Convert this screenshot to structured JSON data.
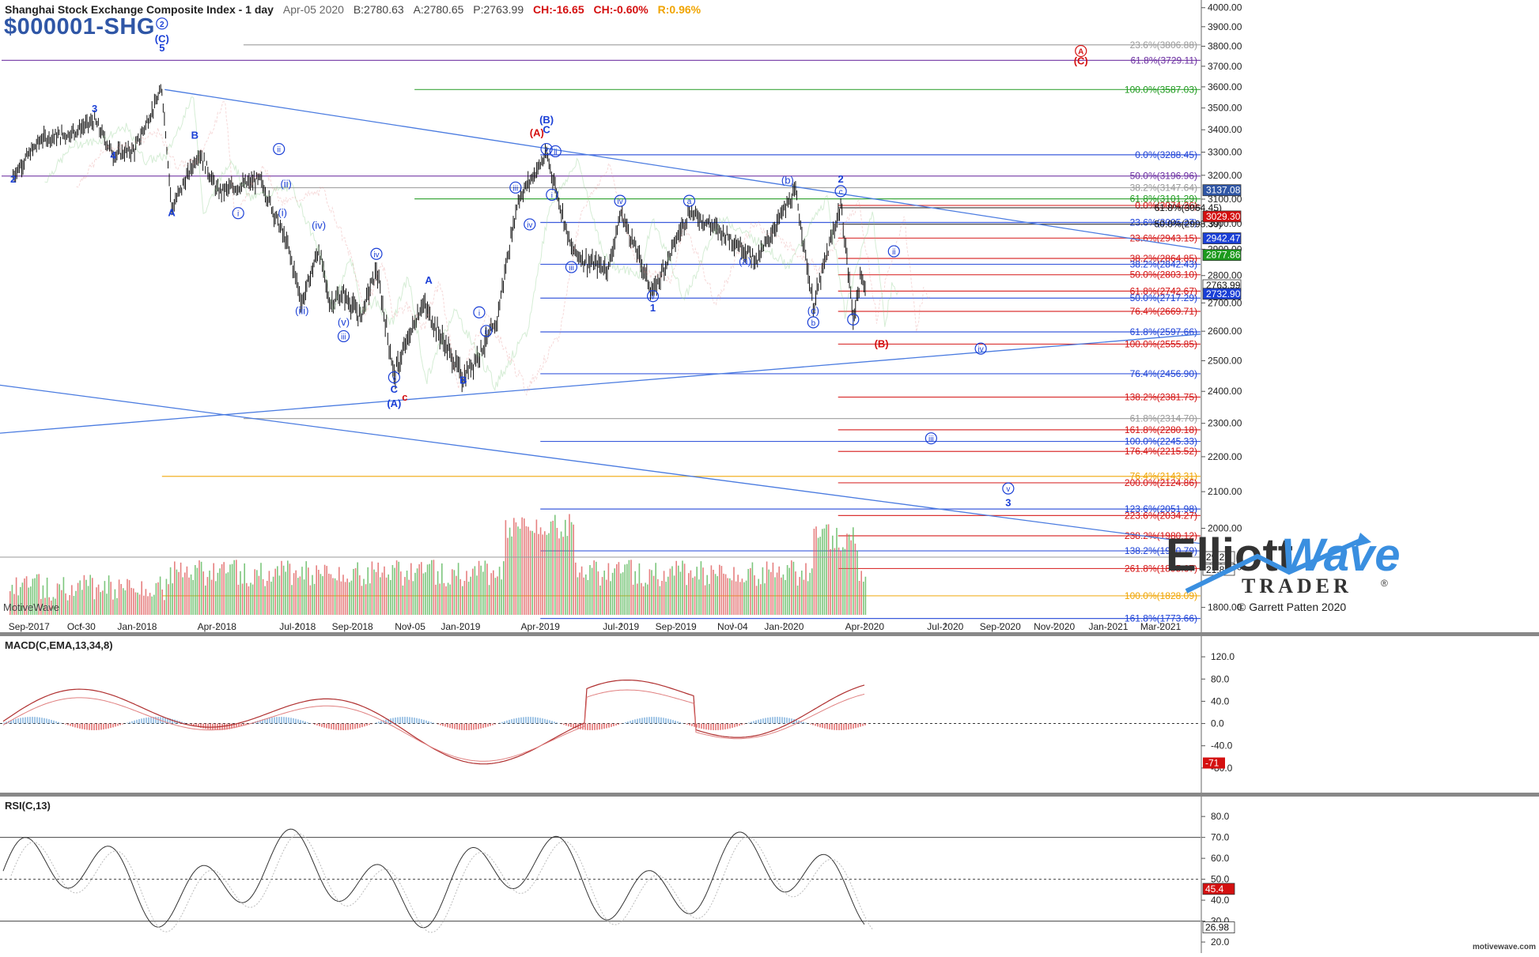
{
  "header": {
    "title": "Shanghai Stock Exchange Composite Index - 1 day",
    "date": "Apr-05 2020",
    "bid": "B:2780.63",
    "ask": "A:2780.65",
    "price": "P:2763.99",
    "change": "CH:-16.65",
    "change_pct": "CH:-0.60%",
    "range_pct": "R:0.96%",
    "symbol": "$000001-SHG"
  },
  "watermark": "MotiveWave",
  "copyright": "© Garrett Patten 2020",
  "footer": "motivewave.com",
  "logo": {
    "line1": "Elliott",
    "line2": "Wave",
    "line3": "TRADER",
    "registered": "®"
  },
  "colors": {
    "blue": "#1a3fd6",
    "red": "#d41010",
    "green": "#1d9a1d",
    "orange": "#f0a400",
    "purple": "#6a2ca0",
    "gray": "#999999",
    "price_bar": "#111111",
    "vol_up": "#5cb85c",
    "vol_down": "#e06060"
  },
  "chart_data": [
    {
      "type": "ohlc",
      "title": "Shanghai Stock Exchange Composite Index - 1 day",
      "xlabel": "",
      "ylabel": "",
      "x_ticks": [
        "Sep-2017",
        "Oct-30",
        "Jan-2018",
        "Apr-2018",
        "Jul-2018",
        "Sep-2018",
        "Nov-05",
        "Jan-2019",
        "Apr-2019",
        "Jul-2019",
        "Sep-2019",
        "Nov-04",
        "Jan-2020",
        "Apr-2020",
        "Jul-2020",
        "Sep-2020",
        "Nov-2020",
        "Jan-2021",
        "Mar-2021"
      ],
      "y_ticks": [
        1800,
        1900,
        2000,
        2100,
        2200,
        2300,
        2400,
        2500,
        2600,
        2700,
        2800,
        2900,
        3000,
        3100,
        3200,
        3300,
        3400,
        3500,
        3600,
        3700,
        3800,
        3900,
        4000
      ],
      "ylim": [
        1760,
        4020
      ],
      "price_path": [
        [
          "2017-08-14",
          3200
        ],
        [
          "2017-09-15",
          3360
        ],
        [
          "2017-10-15",
          3380
        ],
        [
          "2017-11-14",
          3440
        ],
        [
          "2017-12-05",
          3290
        ],
        [
          "2017-12-29",
          3310
        ],
        [
          "2018-01-29",
          3587
        ],
        [
          "2018-02-09",
          3060
        ],
        [
          "2018-03-12",
          3300
        ],
        [
          "2018-04-02",
          3130
        ],
        [
          "2018-05-20",
          3180
        ],
        [
          "2018-06-20",
          2910
        ],
        [
          "2018-07-06",
          2700
        ],
        [
          "2018-07-25",
          2900
        ],
        [
          "2018-08-06",
          2700
        ],
        [
          "2018-08-22",
          2730
        ],
        [
          "2018-09-10",
          2650
        ],
        [
          "2018-09-28",
          2820
        ],
        [
          "2018-10-18",
          2449
        ],
        [
          "2018-11-19",
          2700
        ],
        [
          "2018-12-10",
          2580
        ],
        [
          "2019-01-04",
          2440
        ],
        [
          "2019-02-10",
          2620
        ],
        [
          "2019-03-07",
          3100
        ],
        [
          "2019-04-08",
          3288
        ],
        [
          "2019-05-06",
          2900
        ],
        [
          "2019-05-24",
          2850
        ],
        [
          "2019-06-17",
          2830
        ],
        [
          "2019-07-01",
          3044
        ],
        [
          "2019-08-06",
          2733
        ],
        [
          "2019-09-16",
          3050
        ],
        [
          "2019-10-30",
          2950
        ],
        [
          "2019-12-02",
          2858
        ],
        [
          "2019-12-31",
          3050
        ],
        [
          "2020-01-14",
          3127
        ],
        [
          "2020-02-03",
          2685
        ],
        [
          "2020-03-05",
          3074
        ],
        [
          "2020-03-19",
          2646
        ],
        [
          "2020-03-27",
          2780
        ],
        [
          "2020-04-03",
          2763.99
        ]
      ],
      "volume_scale_right": [
        "29.2B",
        "21.8B"
      ],
      "fib_levels": [
        {
          "label": "23.6%(3806.88)",
          "color": "#999999"
        },
        {
          "label": "61.8%(3729.11)",
          "color": "#6a2ca0"
        },
        {
          "label": "100.0%(3587.03)",
          "color": "#1d9a1d"
        },
        {
          "label": "0.0%(3288.45)",
          "color": "#1a3fd6"
        },
        {
          "label": "50.0%(3196.96)",
          "color": "#6a2ca0"
        },
        {
          "label": "38.2%(3147.64)",
          "color": "#999999"
        },
        {
          "label": "61.8%(3101.29)",
          "color": "#1d9a1d"
        },
        {
          "label": "0.0%(3074.26)",
          "color": "#d41010"
        },
        {
          "label": "61.8%(3064.45)",
          "color": "#111111"
        },
        {
          "label": "23.6%(3005.27)",
          "color": "#1a3fd6"
        },
        {
          "label": "50.0%(2998.39)",
          "color": "#111111"
        },
        {
          "label": "23.6%(2943.15)",
          "color": "#d41010"
        },
        {
          "label": "38.2%(2864.85)",
          "color": "#d41010"
        },
        {
          "label": "38.2%(2842.43)",
          "color": "#1a3fd6"
        },
        {
          "label": "50.0%(2803.10)",
          "color": "#d41010"
        },
        {
          "label": "61.8%(2742.67)",
          "color": "#d41010"
        },
        {
          "label": "50.0%(2717.29)",
          "color": "#1a3fd6"
        },
        {
          "label": "76.4%(2669.71)",
          "color": "#d41010"
        },
        {
          "label": "61.8%(2597.66)",
          "color": "#1a3fd6"
        },
        {
          "label": "100.0%(2555.85)",
          "color": "#d41010"
        },
        {
          "label": "76.4%(2456.90)",
          "color": "#1a3fd6"
        },
        {
          "label": "138.2%(2381.75)",
          "color": "#d41010"
        },
        {
          "label": "61.8%(2314.70)",
          "color": "#999999"
        },
        {
          "label": "161.8%(2280.18)",
          "color": "#d41010"
        },
        {
          "label": "100.0%(2245.33)",
          "color": "#1a3fd6"
        },
        {
          "label": "176.4%(2215.52)",
          "color": "#d41010"
        },
        {
          "label": "76.4%(2143.31)",
          "color": "#f0a400"
        },
        {
          "label": "200.0%(2124.86)",
          "color": "#d41010"
        },
        {
          "label": "123.6%(2051.98)",
          "color": "#1a3fd6"
        },
        {
          "label": "223.6%(2034.27)",
          "color": "#d41010"
        },
        {
          "label": "238.2%(1980.12)",
          "color": "#d41010"
        },
        {
          "label": "138.2%(1940.79)",
          "color": "#1a3fd6"
        },
        {
          "label": "261.8%(1895.67)",
          "color": "#d41010"
        },
        {
          "label": "100.0%(1828.09)",
          "color": "#f0a400"
        },
        {
          "label": "161.8%(1773.66)",
          "color": "#1a3fd6"
        }
      ],
      "price_tags": [
        {
          "label": "3137.08",
          "color": "#2f56a6"
        },
        {
          "label": "3029.30",
          "color": "#d41010"
        },
        {
          "label": "2942.47",
          "color": "#1a3fd6"
        },
        {
          "label": "2877.86",
          "color": "#1d9a1d"
        },
        {
          "label": "2763.99",
          "color": "#ffffff"
        },
        {
          "label": "2732.90",
          "color": "#1a3fd6"
        }
      ],
      "wave_labels": [
        {
          "text": "2",
          "date": "2017-08-14",
          "y": 3170,
          "color": "#1a3fd6",
          "circle": false,
          "bold": true
        },
        {
          "text": "3",
          "date": "2017-11-14",
          "y": 3480,
          "color": "#1a3fd6",
          "circle": false,
          "bold": true
        },
        {
          "text": "4",
          "date": "2017-12-05",
          "y": 3270,
          "color": "#1a3fd6",
          "circle": false,
          "bold": true
        },
        {
          "text": "2",
          "date": "2018-01-29",
          "y": 3900,
          "color": "#1a3fd6",
          "circle": true,
          "bold": true
        },
        {
          "text": "(C)",
          "date": "2018-01-29",
          "y": 3820,
          "color": "#1a3fd6",
          "circle": false,
          "bold": true
        },
        {
          "text": "5",
          "date": "2018-01-29",
          "y": 3775,
          "color": "#1a3fd6",
          "circle": false,
          "bold": true
        },
        {
          "text": "B",
          "date": "2018-03-07",
          "y": 3360,
          "color": "#1a3fd6",
          "circle": false,
          "bold": true
        },
        {
          "text": "A",
          "date": "2018-02-09",
          "y": 3030,
          "color": "#1a3fd6",
          "circle": false,
          "bold": true
        },
        {
          "text": "ii",
          "date": "2018-06-10",
          "y": 3300,
          "color": "#1a3fd6",
          "circle": true,
          "bold": false
        },
        {
          "text": "i",
          "date": "2018-04-25",
          "y": 3030,
          "color": "#1a3fd6",
          "circle": true,
          "bold": false
        },
        {
          "text": "(ii)",
          "date": "2018-06-18",
          "y": 3150,
          "color": "#1a3fd6",
          "circle": false,
          "bold": false
        },
        {
          "text": "(i)",
          "date": "2018-06-14",
          "y": 3030,
          "color": "#1a3fd6",
          "circle": false,
          "bold": false
        },
        {
          "text": "(iv)",
          "date": "2018-07-25",
          "y": 2980,
          "color": "#1a3fd6",
          "circle": false,
          "bold": false
        },
        {
          "text": "(iii)",
          "date": "2018-07-06",
          "y": 2660,
          "color": "#1a3fd6",
          "circle": false,
          "bold": false
        },
        {
          "text": "(v)",
          "date": "2018-08-22",
          "y": 2620,
          "color": "#1a3fd6",
          "circle": false,
          "bold": false
        },
        {
          "text": "iii",
          "date": "2018-08-22",
          "y": 2572,
          "color": "#1a3fd6",
          "circle": true,
          "bold": false
        },
        {
          "text": "iv",
          "date": "2018-09-28",
          "y": 2870,
          "color": "#1a3fd6",
          "circle": true,
          "bold": false
        },
        {
          "text": "v",
          "date": "2018-10-18",
          "y": 2435,
          "color": "#1a3fd6",
          "circle": true,
          "bold": false
        },
        {
          "text": "C",
          "date": "2018-10-18",
          "y": 2395,
          "color": "#1a3fd6",
          "circle": false,
          "bold": true
        },
        {
          "text": "(A)",
          "date": "2018-10-18",
          "y": 2350,
          "color": "#1a3fd6",
          "circle": false,
          "bold": true
        },
        {
          "text": "c",
          "date": "2018-10-30",
          "y": 2370,
          "color": "#d41010",
          "circle": false,
          "bold": true
        },
        {
          "text": "A",
          "date": "2018-11-26",
          "y": 2770,
          "color": "#1a3fd6",
          "circle": false,
          "bold": true
        },
        {
          "text": "B",
          "date": "2019-01-04",
          "y": 2425,
          "color": "#1a3fd6",
          "circle": false,
          "bold": true
        },
        {
          "text": "i",
          "date": "2019-01-22",
          "y": 2655,
          "color": "#1a3fd6",
          "circle": true,
          "bold": false
        },
        {
          "text": "ii",
          "date": "2019-01-30",
          "y": 2590,
          "color": "#1a3fd6",
          "circle": true,
          "bold": false
        },
        {
          "text": "iii",
          "date": "2019-03-04",
          "y": 3135,
          "color": "#1a3fd6",
          "circle": true,
          "bold": false
        },
        {
          "text": "iv",
          "date": "2019-03-20",
          "y": 2985,
          "color": "#1a3fd6",
          "circle": true,
          "bold": false
        },
        {
          "text": "(B)",
          "date": "2019-04-08",
          "y": 3430,
          "color": "#1a3fd6",
          "circle": false,
          "bold": true
        },
        {
          "text": "(A)",
          "date": "2019-03-28",
          "y": 3370,
          "color": "#d41010",
          "circle": false,
          "bold": true
        },
        {
          "text": "C",
          "date": "2019-04-08",
          "y": 3385,
          "color": "#1a3fd6",
          "circle": false,
          "bold": true
        },
        {
          "text": "v",
          "date": "2019-04-08",
          "y": 3300,
          "color": "#1a3fd6",
          "circle": true,
          "bold": false
        },
        {
          "text": "ii",
          "date": "2019-04-18",
          "y": 3290,
          "color": "#1a3fd6",
          "circle": true,
          "bold": false
        },
        {
          "text": "i",
          "date": "2019-04-14",
          "y": 3105,
          "color": "#1a3fd6",
          "circle": true,
          "bold": false
        },
        {
          "text": "iii",
          "date": "2019-05-06",
          "y": 2820,
          "color": "#1a3fd6",
          "circle": true,
          "bold": false
        },
        {
          "text": "iv",
          "date": "2019-06-30",
          "y": 3080,
          "color": "#1a3fd6",
          "circle": true,
          "bold": false
        },
        {
          "text": "v",
          "date": "2019-08-06",
          "y": 2713,
          "color": "#1a3fd6",
          "circle": true,
          "bold": false
        },
        {
          "text": "1",
          "date": "2019-08-06",
          "y": 2670,
          "color": "#1a3fd6",
          "circle": false,
          "bold": true
        },
        {
          "text": "a",
          "date": "2019-09-16",
          "y": 3080,
          "color": "#1a3fd6",
          "circle": true,
          "bold": false
        },
        {
          "text": "(a)",
          "date": "2019-11-18",
          "y": 2840,
          "color": "#1a3fd6",
          "circle": false,
          "bold": false
        },
        {
          "text": "(b)",
          "date": "2020-01-05",
          "y": 3165,
          "color": "#1a3fd6",
          "circle": false,
          "bold": false
        },
        {
          "text": "(c)",
          "date": "2020-02-03",
          "y": 2660,
          "color": "#1a3fd6",
          "circle": false,
          "bold": false
        },
        {
          "text": "b",
          "date": "2020-02-03",
          "y": 2620,
          "color": "#1a3fd6",
          "circle": true,
          "bold": false
        },
        {
          "text": "2",
          "date": "2020-03-05",
          "y": 3170,
          "color": "#1a3fd6",
          "circle": false,
          "bold": true
        },
        {
          "text": "c",
          "date": "2020-03-05",
          "y": 3120,
          "color": "#1a3fd6",
          "circle": true,
          "bold": false
        },
        {
          "text": "i",
          "date": "2020-03-19",
          "y": 2630,
          "color": "#1a3fd6",
          "circle": true,
          "bold": false
        },
        {
          "text": "ii",
          "date": "2020-05-04",
          "y": 2880,
          "color": "#1a3fd6",
          "circle": true,
          "bold": false
        },
        {
          "text": "(B)",
          "date": "2020-04-20",
          "y": 2545,
          "color": "#d41010",
          "circle": false,
          "bold": true
        },
        {
          "text": "iv",
          "date": "2020-08-10",
          "y": 2530,
          "color": "#1a3fd6",
          "circle": true,
          "bold": false
        },
        {
          "text": "iii",
          "date": "2020-06-15",
          "y": 2245,
          "color": "#1a3fd6",
          "circle": true,
          "bold": false
        },
        {
          "text": "v",
          "date": "2020-09-10",
          "y": 2100,
          "color": "#1a3fd6",
          "circle": true,
          "bold": false
        },
        {
          "text": "3",
          "date": "2020-09-10",
          "y": 2060,
          "color": "#1a3fd6",
          "circle": false,
          "bold": true
        },
        {
          "text": "A",
          "date": "2020-12-01",
          "y": 3760,
          "color": "#d41010",
          "circle": true,
          "bold": true
        },
        {
          "text": "(C)",
          "date": "2020-12-01",
          "y": 3710,
          "color": "#d41010",
          "circle": false,
          "bold": true
        }
      ]
    },
    {
      "type": "line",
      "title": "MACD(C,EMA,13,34,8)",
      "y_ticks": [
        "120.0",
        "80.0",
        "40.0",
        "0.0",
        "-40.0",
        "-80.0"
      ],
      "ylim": [
        -120,
        150
      ],
      "current_tag": "-71"
    },
    {
      "type": "line",
      "title": "RSI(C,13)",
      "y_ticks": [
        "80.0",
        "70.0",
        "60.0",
        "50.0",
        "40.0",
        "30.0",
        "20.0"
      ],
      "ylim": [
        17,
        88
      ],
      "overbought": 70,
      "oversold": 30,
      "midline": 50,
      "current_tags": [
        "45.4",
        "26.98"
      ]
    }
  ]
}
